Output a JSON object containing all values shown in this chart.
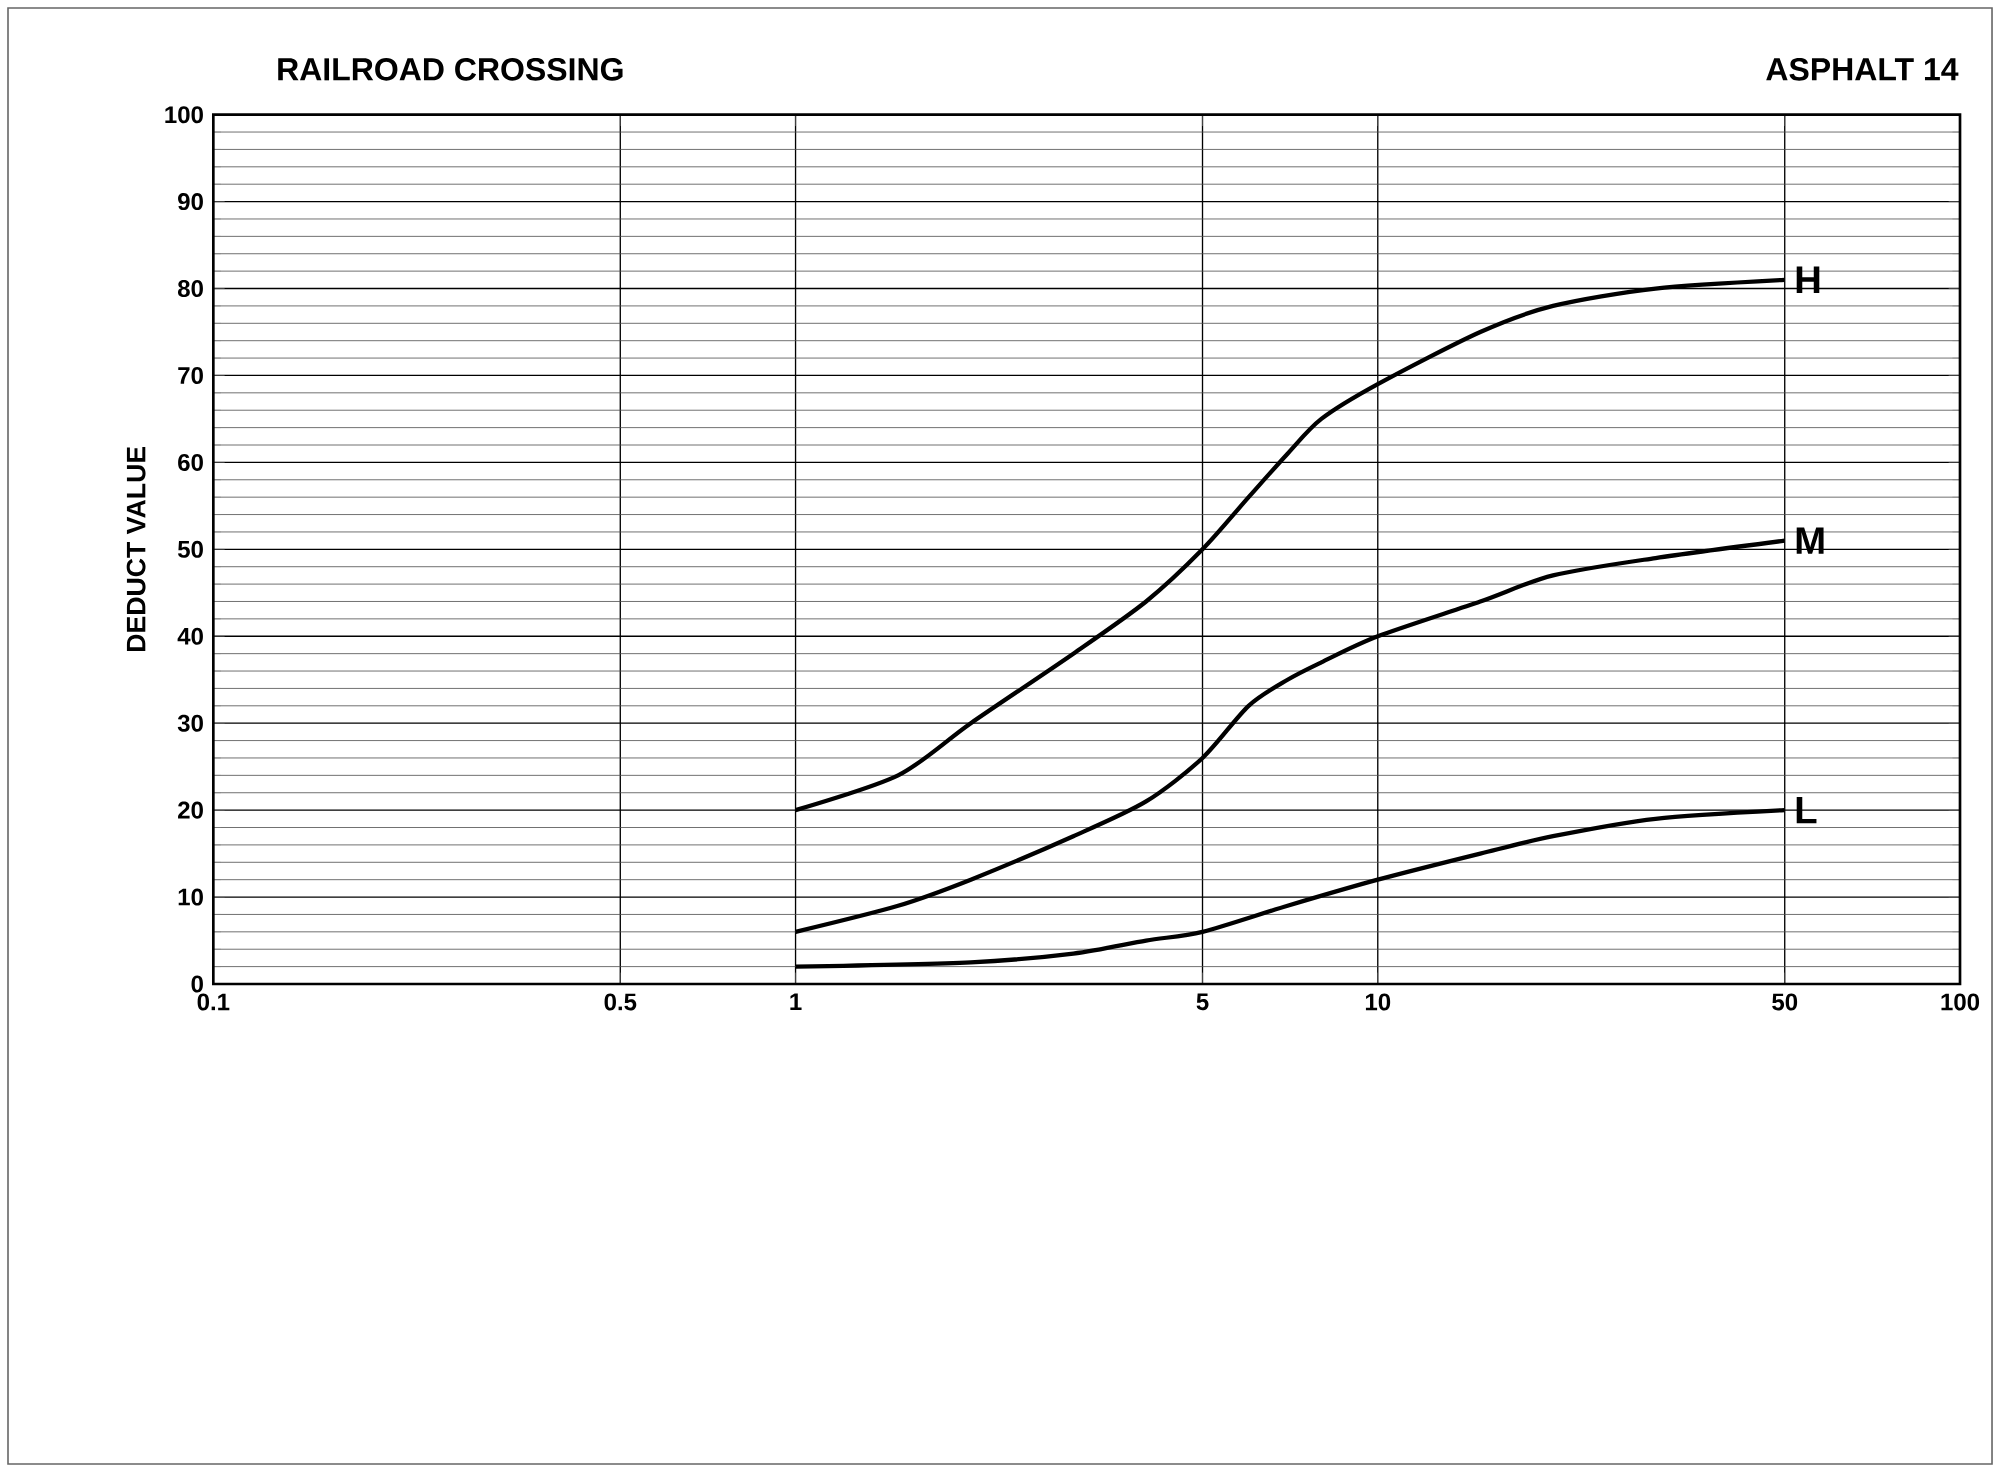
{
  "chart_data": {
    "type": "line",
    "title": "RAILROAD CROSSING",
    "subtitle": "ASPHALT 14",
    "ylabel": "DEDUCT VALUE",
    "log": "x",
    "grid": true,
    "legend": false,
    "marker": "none",
    "line_style": "solid",
    "xlim": [
      0.1,
      100
    ],
    "ylim": [
      0,
      100
    ],
    "xticks": [
      0.1,
      0.5,
      1,
      5,
      10,
      50,
      100
    ],
    "yticks": [
      0,
      10,
      20,
      30,
      40,
      50,
      60,
      70,
      80,
      90,
      100
    ],
    "series": [
      {
        "name": "H",
        "color": "#000000",
        "x": [
          1,
          1.5,
          2,
          3,
          4,
          5,
          6,
          7,
          8,
          10,
          15,
          20,
          30,
          50
        ],
        "values": [
          20,
          24,
          30,
          38,
          44,
          50,
          56,
          61,
          65,
          69,
          75,
          78,
          80,
          81
        ]
      },
      {
        "name": "M",
        "color": "#000000",
        "x": [
          1,
          1.5,
          2,
          3,
          4,
          5,
          6,
          7,
          8,
          10,
          15,
          20,
          30,
          50
        ],
        "values": [
          6,
          9,
          12,
          17,
          21,
          26,
          32,
          35,
          37,
          40,
          44,
          47,
          49,
          51
        ]
      },
      {
        "name": "L",
        "color": "#000000",
        "x": [
          1,
          2,
          3,
          4,
          5,
          7,
          10,
          15,
          20,
          30,
          50
        ],
        "values": [
          2,
          2.5,
          3.5,
          5,
          6,
          9,
          12,
          15,
          17,
          19,
          20
        ]
      }
    ]
  }
}
